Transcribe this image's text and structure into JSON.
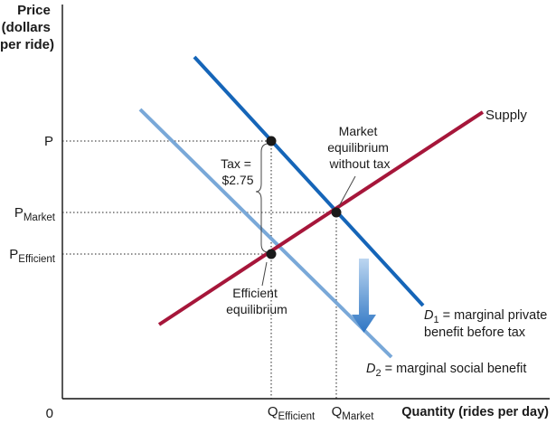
{
  "chart_data": {
    "type": "line",
    "title": "",
    "ylabel_lines": [
      "Price",
      "(dollars",
      "per ride)"
    ],
    "xlabel": "Quantity (rides per day)",
    "origin_label": "0",
    "grid": false,
    "y_ticks": [
      {
        "main": "P",
        "sub": ""
      },
      {
        "main": "P",
        "sub": "Market"
      },
      {
        "main": "P",
        "sub": "Efficient"
      }
    ],
    "x_ticks": [
      {
        "main": "Q",
        "sub": "Efficient"
      },
      {
        "main": "Q",
        "sub": "Market"
      }
    ],
    "series": [
      {
        "name": "Supply",
        "color": "#a6163a"
      },
      {
        "name": "D1",
        "color": "#1565b8"
      },
      {
        "name": "D2",
        "color": "#79a8d8"
      }
    ],
    "curve_labels": {
      "supply": "Supply",
      "d1_letter": "D",
      "d1_sub": "1",
      "d1_line1": " = marginal private",
      "d1_line2": "benefit before tax",
      "d2_letter": "D",
      "d2_sub": "2",
      "d2_line1": " = marginal social benefit"
    },
    "annotations": {
      "tax_line1": "Tax =",
      "tax_line2": "$2.75",
      "market_line1": "Market",
      "market_line2": "equilibrium",
      "market_line3": "without tax",
      "efficient_line1": "Efficient",
      "efficient_line2": "equilibrium"
    },
    "arrow_direction": "down",
    "arrow_color": "#3b7fc8"
  }
}
